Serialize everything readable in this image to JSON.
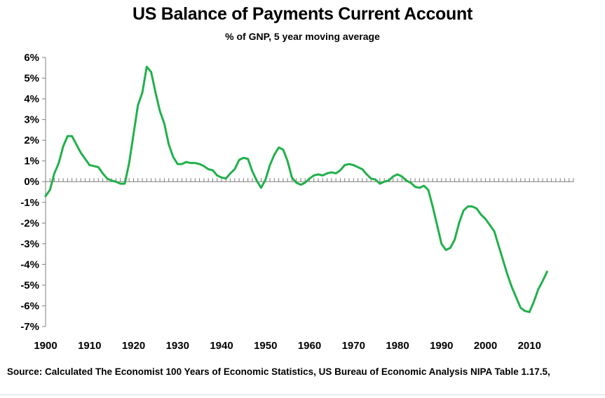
{
  "chart_data": {
    "type": "line",
    "title": "US Balance of Payments Current Account",
    "subtitle": "% of GNP, 5 year moving average",
    "xlabel": "",
    "ylabel": "",
    "xlim": [
      1900,
      2020
    ],
    "ylim": [
      -7,
      6
    ],
    "x_ticks": [
      "1900",
      "1910",
      "1920",
      "1930",
      "1940",
      "1950",
      "1960",
      "1970",
      "1980",
      "1990",
      "2000",
      "2010"
    ],
    "y_ticks": [
      "6%",
      "5%",
      "4%",
      "3%",
      "2%",
      "1%",
      "0%",
      "-1%",
      "-2%",
      "-3%",
      "-4%",
      "-5%",
      "-6%",
      "-7%"
    ],
    "grid": false,
    "series": [
      {
        "color": "#21b04b",
        "points": [
          [
            1900,
            -0.7
          ],
          [
            1901,
            -0.4
          ],
          [
            1902,
            0.4
          ],
          [
            1903,
            0.9
          ],
          [
            1904,
            1.7
          ],
          [
            1905,
            2.2
          ],
          [
            1906,
            2.2
          ],
          [
            1907,
            1.8
          ],
          [
            1908,
            1.4
          ],
          [
            1909,
            1.1
          ],
          [
            1910,
            0.8
          ],
          [
            1911,
            0.75
          ],
          [
            1912,
            0.7
          ],
          [
            1913,
            0.4
          ],
          [
            1914,
            0.15
          ],
          [
            1915,
            0.05
          ],
          [
            1916,
            0.0
          ],
          [
            1917,
            -0.1
          ],
          [
            1918,
            -0.1
          ],
          [
            1919,
            0.9
          ],
          [
            1920,
            2.3
          ],
          [
            1921,
            3.7
          ],
          [
            1922,
            4.3
          ],
          [
            1923,
            5.55
          ],
          [
            1924,
            5.3
          ],
          [
            1925,
            4.3
          ],
          [
            1926,
            3.4
          ],
          [
            1927,
            2.8
          ],
          [
            1928,
            1.8
          ],
          [
            1929,
            1.2
          ],
          [
            1930,
            0.85
          ],
          [
            1931,
            0.85
          ],
          [
            1932,
            0.95
          ],
          [
            1933,
            0.9
          ],
          [
            1934,
            0.9
          ],
          [
            1935,
            0.85
          ],
          [
            1936,
            0.75
          ],
          [
            1937,
            0.6
          ],
          [
            1938,
            0.55
          ],
          [
            1939,
            0.3
          ],
          [
            1940,
            0.2
          ],
          [
            1941,
            0.15
          ],
          [
            1942,
            0.4
          ],
          [
            1943,
            0.6
          ],
          [
            1944,
            1.05
          ],
          [
            1945,
            1.15
          ],
          [
            1946,
            1.1
          ],
          [
            1947,
            0.5
          ],
          [
            1948,
            0.05
          ],
          [
            1949,
            -0.3
          ],
          [
            1950,
            0.1
          ],
          [
            1951,
            0.8
          ],
          [
            1952,
            1.3
          ],
          [
            1953,
            1.65
          ],
          [
            1954,
            1.55
          ],
          [
            1955,
            1.0
          ],
          [
            1956,
            0.2
          ],
          [
            1957,
            -0.05
          ],
          [
            1958,
            -0.15
          ],
          [
            1959,
            -0.05
          ],
          [
            1960,
            0.15
          ],
          [
            1961,
            0.3
          ],
          [
            1962,
            0.35
          ],
          [
            1963,
            0.3
          ],
          [
            1964,
            0.4
          ],
          [
            1965,
            0.45
          ],
          [
            1966,
            0.4
          ],
          [
            1967,
            0.55
          ],
          [
            1968,
            0.8
          ],
          [
            1969,
            0.85
          ],
          [
            1970,
            0.8
          ],
          [
            1971,
            0.7
          ],
          [
            1972,
            0.6
          ],
          [
            1973,
            0.35
          ],
          [
            1974,
            0.15
          ],
          [
            1975,
            0.1
          ],
          [
            1976,
            -0.1
          ],
          [
            1977,
            0.0
          ],
          [
            1978,
            0.05
          ],
          [
            1979,
            0.25
          ],
          [
            1980,
            0.35
          ],
          [
            1981,
            0.25
          ],
          [
            1982,
            0.05
          ],
          [
            1983,
            -0.05
          ],
          [
            1984,
            -0.25
          ],
          [
            1985,
            -0.3
          ],
          [
            1986,
            -0.2
          ],
          [
            1987,
            -0.4
          ],
          [
            1988,
            -1.2
          ],
          [
            1989,
            -2.1
          ],
          [
            1990,
            -3.0
          ],
          [
            1991,
            -3.3
          ],
          [
            1992,
            -3.2
          ],
          [
            1993,
            -2.8
          ],
          [
            1994,
            -2.0
          ],
          [
            1995,
            -1.4
          ],
          [
            1996,
            -1.2
          ],
          [
            1997,
            -1.2
          ],
          [
            1998,
            -1.3
          ],
          [
            1999,
            -1.6
          ],
          [
            2000,
            -1.8
          ],
          [
            2001,
            -2.1
          ],
          [
            2002,
            -2.4
          ],
          [
            2003,
            -3.1
          ],
          [
            2004,
            -3.8
          ],
          [
            2005,
            -4.5
          ],
          [
            2006,
            -5.1
          ],
          [
            2007,
            -5.6
          ],
          [
            2008,
            -6.1
          ],
          [
            2009,
            -6.25
          ],
          [
            2010,
            -6.3
          ],
          [
            2011,
            -5.8
          ],
          [
            2012,
            -5.2
          ],
          [
            2013,
            -4.8
          ],
          [
            2014,
            -4.35
          ]
        ]
      }
    ]
  },
  "source_note": "Source: Calculated The Economist 100 Years of Economic Statistics, US Bureau of Economic Analysis NIPA Table 1.17.5,"
}
